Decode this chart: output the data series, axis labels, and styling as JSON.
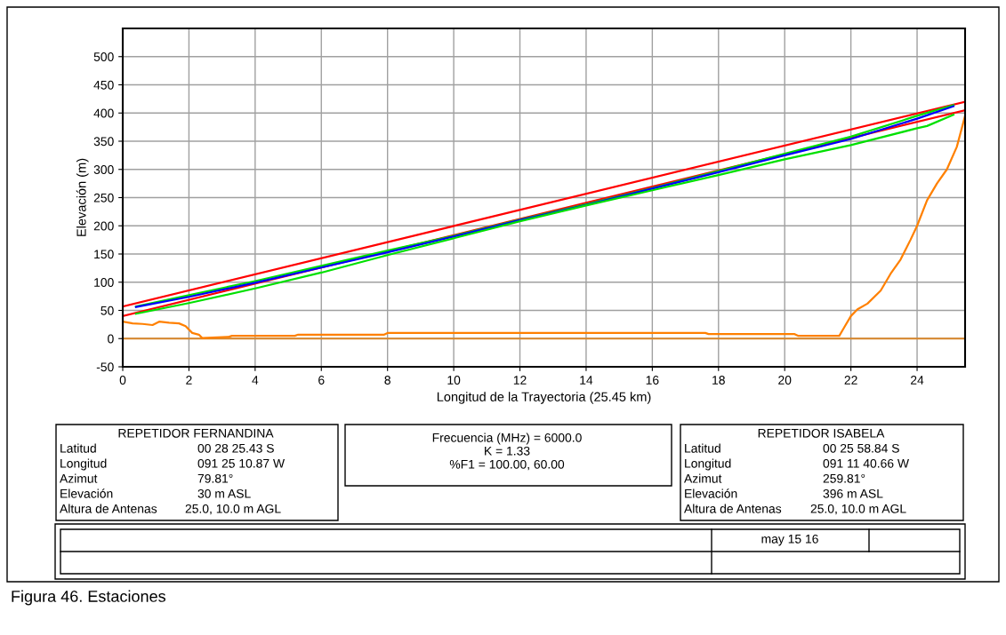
{
  "chart_data": {
    "type": "line",
    "xlabel": "Longitud de la Trayectoria (25.45 km)",
    "ylabel": "Elevación (m)",
    "xlim": [
      0,
      25.45
    ],
    "ylim": [
      -50,
      550
    ],
    "xticks": [
      0,
      2,
      4,
      6,
      8,
      10,
      12,
      14,
      16,
      18,
      20,
      22,
      24
    ],
    "yticks": [
      -50,
      0,
      50,
      100,
      150,
      200,
      250,
      300,
      350,
      400,
      450,
      500
    ],
    "grid": true,
    "legend": false,
    "line_style": "solid",
    "marker": "none",
    "series": [
      {
        "color": "#ff0000",
        "x": [
          0,
          25.45
        ],
        "values": [
          57,
          420
        ]
      },
      {
        "color": "#ff0000",
        "x": [
          0,
          25.45
        ],
        "values": [
          40,
          405
        ]
      },
      {
        "color": "#00e000",
        "x": [
          0.4,
          2,
          4,
          6,
          8,
          10,
          12,
          14,
          16,
          18,
          20,
          22,
          24,
          25.1
        ],
        "values": [
          57,
          77,
          102,
          129,
          156,
          182,
          211,
          238,
          267,
          297,
          328,
          358,
          395,
          414
        ]
      },
      {
        "color": "#0000ff",
        "x": [
          0.4,
          2,
          4,
          6,
          8,
          10,
          12,
          14,
          16,
          18,
          20,
          22,
          24,
          25.1
        ],
        "values": [
          56,
          74,
          99,
          126,
          153,
          181,
          210,
          237,
          266,
          295,
          325,
          354,
          390,
          412
        ]
      },
      {
        "color": "#00e000",
        "x": [
          0.4,
          2,
          4,
          6,
          8,
          10,
          12,
          14,
          16,
          18,
          20,
          22,
          24,
          24.3,
          25.1
        ],
        "values": [
          44,
          63,
          89,
          117,
          148,
          178,
          208,
          236,
          263,
          290,
          318,
          343,
          373,
          377,
          397
        ]
      },
      {
        "color": "#d8862a",
        "x": [
          0,
          25.45
        ],
        "values": [
          0,
          0
        ]
      },
      {
        "color": "#ff8000",
        "x": [
          0,
          0.3,
          0.6,
          0.9,
          1.1,
          1.4,
          1.7,
          1.9,
          2.1,
          2.3,
          2.4,
          3.2,
          3.3,
          5.2,
          5.3,
          7.9,
          8.0,
          17.6,
          17.7,
          20.3,
          20.4,
          21.65,
          21.8,
          22.0,
          22.2,
          22.5,
          22.9,
          23.2,
          23.5,
          23.8,
          24.0,
          24.3,
          24.6,
          24.9,
          25.2,
          25.45
        ],
        "values": [
          30,
          27,
          26,
          24,
          30,
          28,
          27,
          22,
          10,
          7,
          1,
          3,
          5,
          5,
          7,
          7,
          10,
          10,
          8,
          8,
          5,
          5,
          20,
          40,
          52,
          62,
          85,
          115,
          140,
          175,
          200,
          245,
          275,
          300,
          340,
          395
        ]
      }
    ],
    "annotations": [
      "REPETIDOR FERNANDINA",
      "Latitud",
      "Longitud",
      "Azimut",
      "Elevación",
      "Altura de Antenas",
      "00 28 25.43 S",
      "091 25 10.87 W",
      "79.81°",
      "30 m ASL",
      "25.0, 10.0 m AGL",
      "Frecuencia (MHz) = 6000.0",
      "K = 1.33",
      "%F1 = 100.00, 60.00",
      "REPETIDOR ISABELA",
      "Latitud",
      "Longitud",
      "Azimut",
      "Elevación",
      "Altura de Antenas",
      "00 25 58.84 S",
      "091 11 40.66 W",
      "259.81°",
      "396 m ASL",
      "25.0, 10.0 m AGL",
      "may 15 16",
      "Figura 46. Estaciones"
    ]
  }
}
